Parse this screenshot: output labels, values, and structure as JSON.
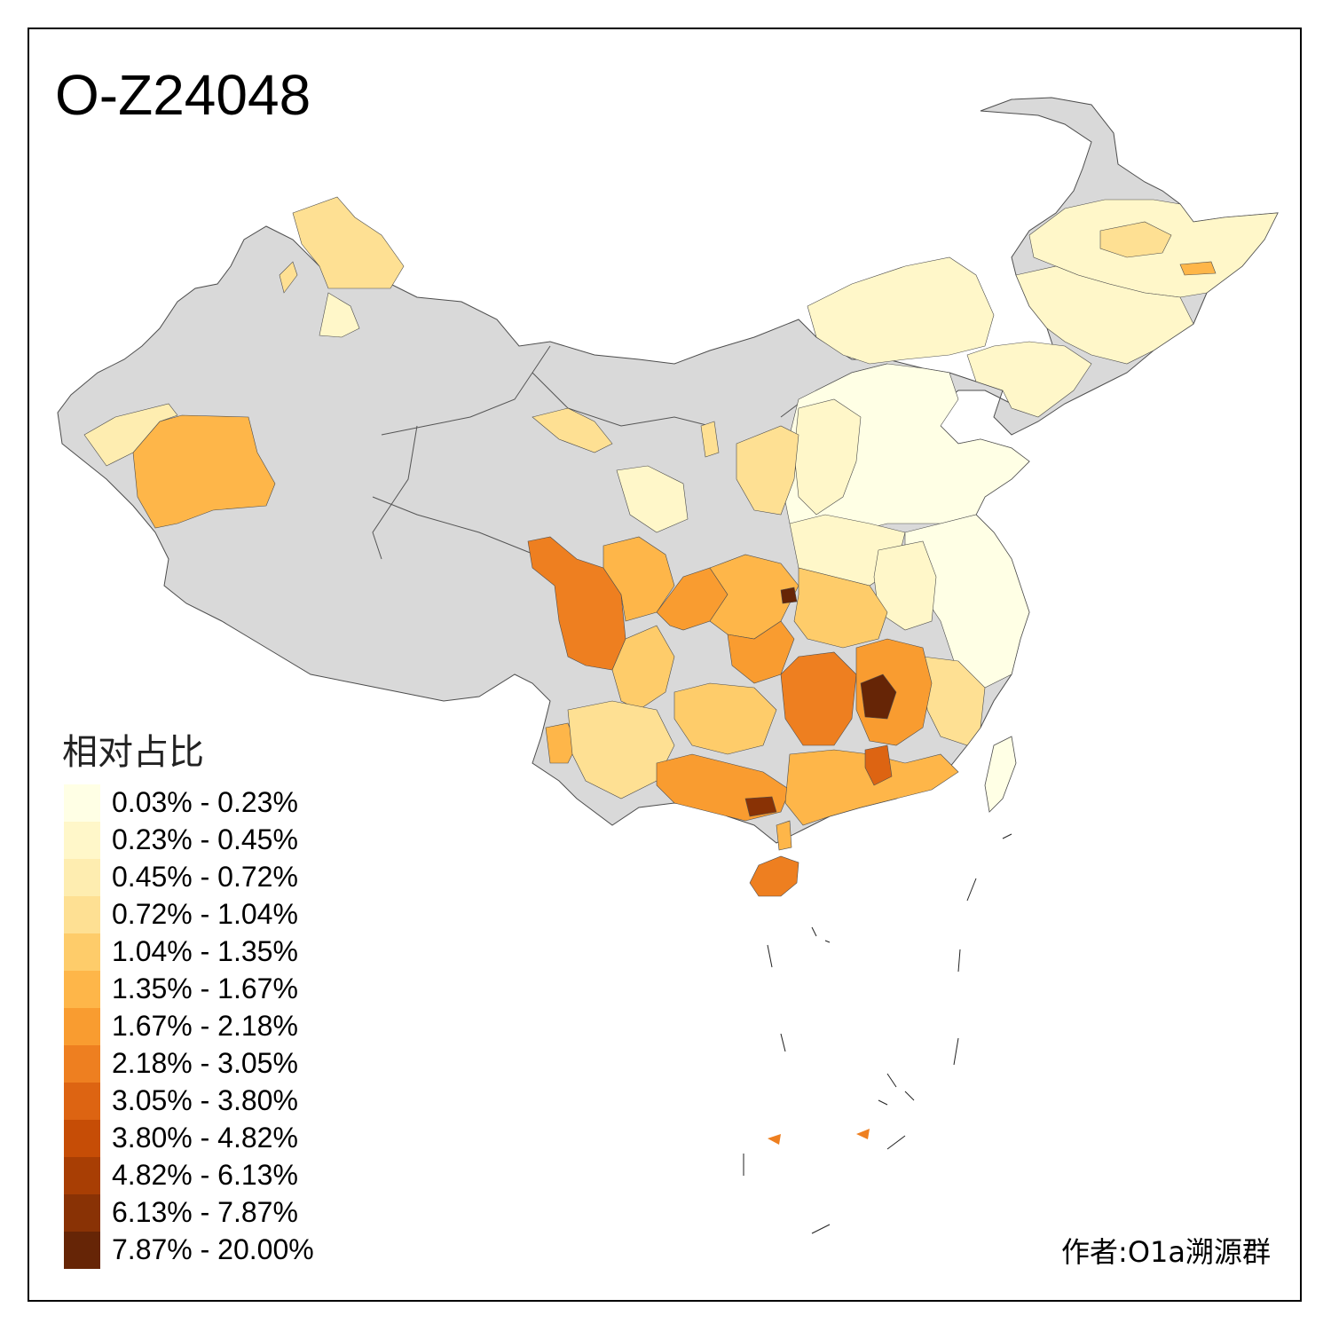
{
  "title": "O-Z24048",
  "legend": {
    "title": "相对占比",
    "items": [
      {
        "label": "0.03% - 0.23%",
        "color": "#FFFFE5"
      },
      {
        "label": "0.23% - 0.45%",
        "color": "#FFF7C9"
      },
      {
        "label": "0.45% - 0.72%",
        "color": "#FEEDB0"
      },
      {
        "label": "0.72% - 1.04%",
        "color": "#FEE093"
      },
      {
        "label": "1.04% - 1.35%",
        "color": "#FECC6A"
      },
      {
        "label": "1.35% - 1.67%",
        "color": "#FEB649"
      },
      {
        "label": "1.67% - 2.18%",
        "color": "#F99C30"
      },
      {
        "label": "2.18% - 3.05%",
        "color": "#EE7F20"
      },
      {
        "label": "3.05% - 3.80%",
        "color": "#DD6412"
      },
      {
        "label": "3.80% - 4.82%",
        "color": "#C64D06"
      },
      {
        "label": "4.82% - 6.13%",
        "color": "#A83E04"
      },
      {
        "label": "6.13% - 7.87%",
        "color": "#893205"
      },
      {
        "label": "7.87% - 20.00%",
        "color": "#662506"
      }
    ]
  },
  "credit": "作者:O1a溯源群",
  "colors": {
    "no_data": "#D9D9D9",
    "border": "#4D4D4D"
  }
}
